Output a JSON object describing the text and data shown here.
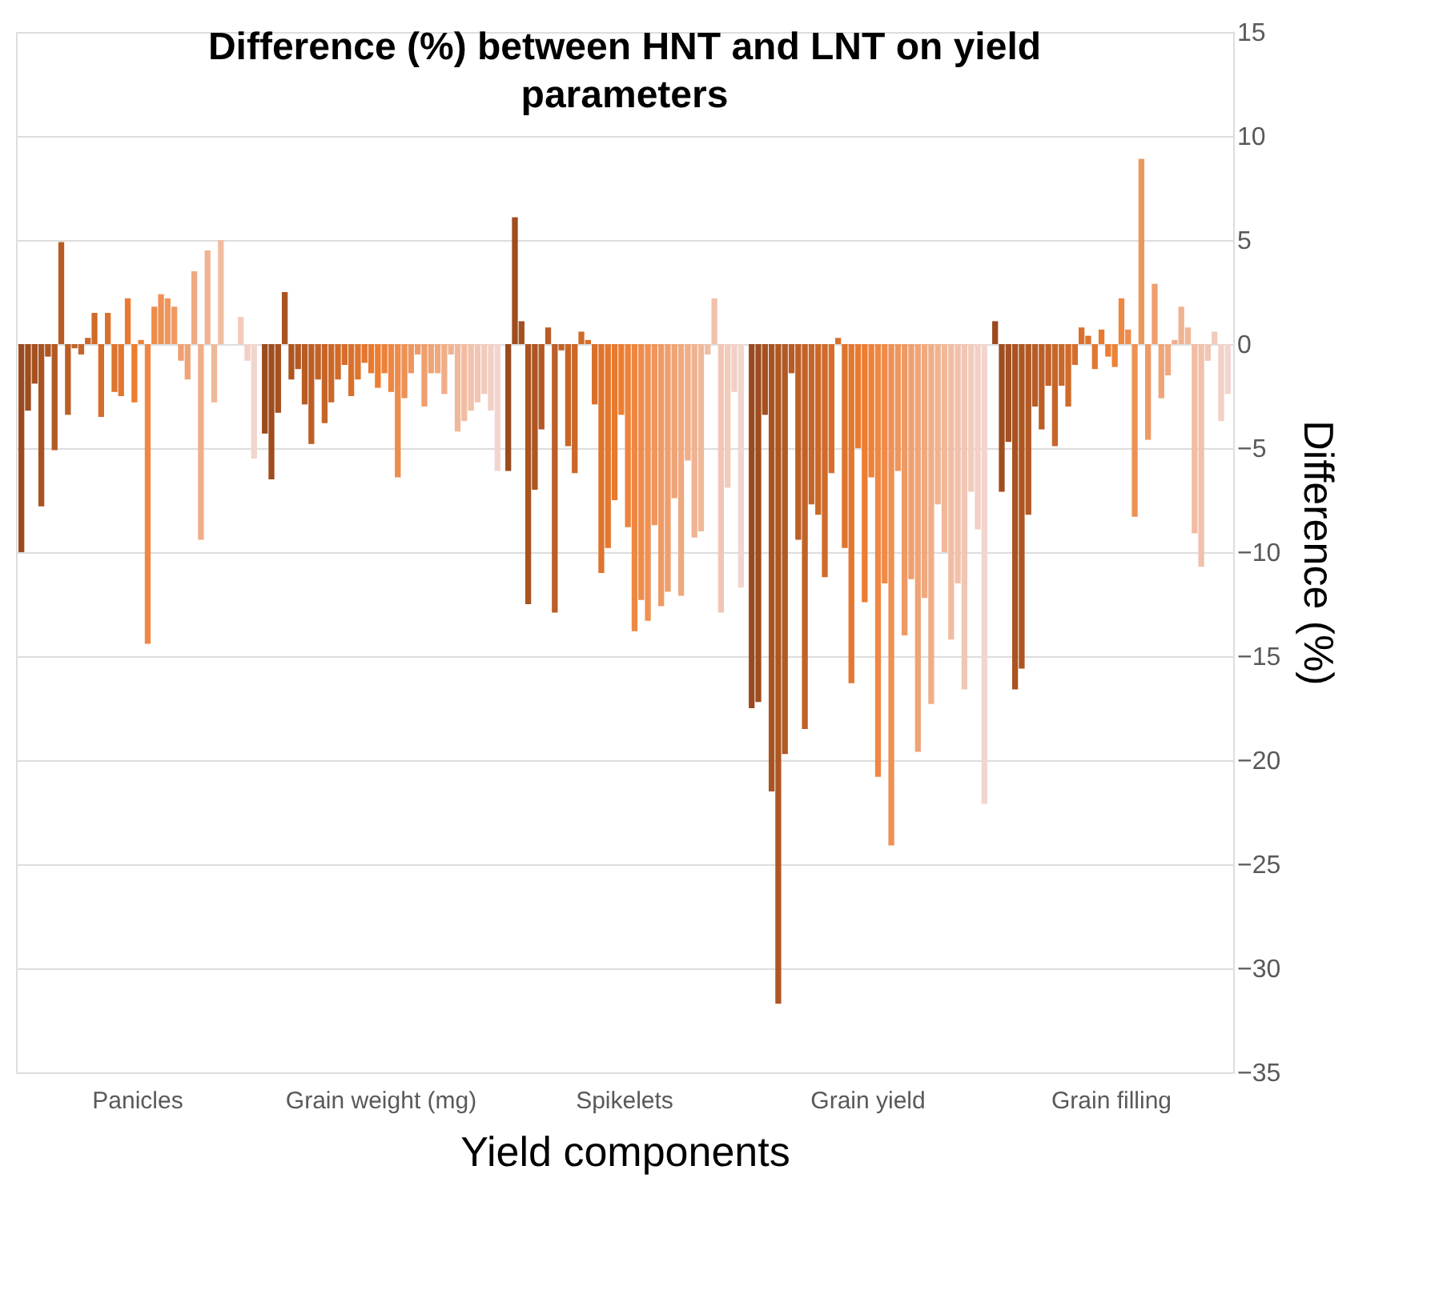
{
  "chart_data": {
    "type": "bar",
    "title": "Difference (%) between HNT and LNT on yield parameters",
    "xlabel": "Yield components",
    "ylabel": "Difference (%)",
    "categories": [
      "Panicles",
      "Grain weight (mg)",
      "Spikelets",
      "Grain yield",
      "Grain filling"
    ],
    "ylim": [
      -35,
      15
    ],
    "yticks": [
      -35,
      -30,
      -25,
      -20,
      -15,
      -10,
      -5,
      0,
      5,
      10,
      15
    ],
    "grid": "y",
    "series": [
      {
        "color": "#9a4a1e",
        "values": [
          -10,
          -4.3,
          -6.1,
          -17.5,
          1.1
        ]
      },
      {
        "color": "#9f4d1f",
        "values": [
          -3.2,
          -6.5,
          6.1,
          -17.2,
          -7.1
        ]
      },
      {
        "color": "#a45020",
        "values": [
          -1.9,
          -3.3,
          1.1,
          -3.4,
          -4.7
        ]
      },
      {
        "color": "#a95321",
        "values": [
          -7.8,
          2.5,
          -12.5,
          -21.5,
          -16.6
        ]
      },
      {
        "color": "#ae5622",
        "values": [
          -0.6,
          -1.7,
          -7.0,
          -31.7,
          -15.6
        ]
      },
      {
        "color": "#b25924",
        "values": [
          -5.1,
          -1.2,
          -4.1,
          -19.7,
          -8.2
        ]
      },
      {
        "color": "#b75c25",
        "values": [
          4.9,
          -2.9,
          0.8,
          -1.4,
          -3.0
        ]
      },
      {
        "color": "#bc5f26",
        "values": [
          -3.4,
          -4.8,
          -12.9,
          -9.4,
          -4.1
        ]
      },
      {
        "color": "#c16227",
        "values": [
          -0.2,
          -1.7,
          -0.3,
          -18.5,
          -2.0
        ]
      },
      {
        "color": "#c66528",
        "values": [
          -0.5,
          -3.8,
          -4.9,
          -7.7,
          -4.9
        ]
      },
      {
        "color": "#cb6829",
        "values": [
          0.3,
          -2.8,
          -6.2,
          -8.2,
          -2.0
        ]
      },
      {
        "color": "#d06b2a",
        "values": [
          1.5,
          -1.7,
          0.6,
          -11.2,
          -3.0
        ]
      },
      {
        "color": "#d56e2b",
        "values": [
          -3.5,
          -1.0,
          0.2,
          -6.2,
          -1.0
        ]
      },
      {
        "color": "#d9712d",
        "values": [
          1.5,
          -2.5,
          -2.9,
          0.3,
          0.8
        ]
      },
      {
        "color": "#de742e",
        "values": [
          -2.3,
          -1.7,
          -11.0,
          -9.8,
          0.4
        ]
      },
      {
        "color": "#e3772f",
        "values": [
          -2.5,
          -0.9,
          -9.8,
          -16.3,
          -1.2
        ]
      },
      {
        "color": "#e87a30",
        "values": [
          2.2,
          -1.4,
          -7.5,
          -5.0,
          0.7
        ]
      },
      {
        "color": "#ed7d31",
        "values": [
          -2.8,
          -2.1,
          -3.4,
          -12.4,
          -0.6
        ]
      },
      {
        "color": "#ed823a",
        "values": [
          0.2,
          -1.4,
          -8.8,
          -6.4,
          -1.1
        ]
      },
      {
        "color": "#ee8742",
        "values": [
          -14.4,
          -2.3,
          -13.8,
          -20.8,
          2.2
        ]
      },
      {
        "color": "#ee8c4b",
        "values": [
          1.8,
          -6.4,
          -12.3,
          -11.5,
          0.7
        ]
      },
      {
        "color": "#ee9154",
        "values": [
          2.4,
          -2.6,
          -13.3,
          -24.1,
          -8.3
        ]
      },
      {
        "color": "#ee965d",
        "values": [
          2.2,
          -1.4,
          -8.7,
          -6.1,
          8.9
        ]
      },
      {
        "color": "#ef9a65",
        "values": [
          1.8,
          -0.5,
          -12.6,
          -14.0,
          -4.6
        ]
      },
      {
        "color": "#ef9f6e",
        "values": [
          -0.8,
          -3.0,
          -11.9,
          -11.3,
          2.9
        ]
      },
      {
        "color": "#efa477",
        "values": [
          -1.7,
          -1.4,
          -7.4,
          -19.6,
          -2.6
        ]
      },
      {
        "color": "#f0a97f",
        "values": [
          3.5,
          -1.4,
          -12.1,
          -12.2,
          -1.5
        ]
      },
      {
        "color": "#f0ae88",
        "values": [
          -9.4,
          -2.4,
          -5.6,
          -17.3,
          0.2
        ]
      },
      {
        "color": "#f0b391",
        "values": [
          4.5,
          -0.5,
          -9.3,
          -7.7,
          1.8
        ]
      },
      {
        "color": "#f0b89a",
        "values": [
          -2.8,
          -4.2,
          -9.0,
          -10.0,
          0.8
        ]
      },
      {
        "color": "#f1bda2",
        "values": [
          5,
          -3.7,
          -0.5,
          -14.2,
          -9.1
        ]
      },
      {
        "color": "#f1c1ab",
        "values": [
          null,
          -3.2,
          2.2,
          -11.5,
          -10.7
        ]
      },
      {
        "color": "#f1c6b4",
        "values": [
          null,
          -2.8,
          -12.9,
          -16.6,
          -0.8
        ]
      },
      {
        "color": "#f2cbbc",
        "values": [
          1.3,
          -2.4,
          -6.9,
          -7.1,
          0.6
        ]
      },
      {
        "color": "#f2d0c5",
        "values": [
          -0.8,
          -3.2,
          -2.3,
          -8.9,
          -3.7
        ]
      },
      {
        "color": "#f2d5ce",
        "values": [
          -5.5,
          -6.1,
          -11.7,
          -22.1,
          -2.4
        ]
      }
    ]
  }
}
